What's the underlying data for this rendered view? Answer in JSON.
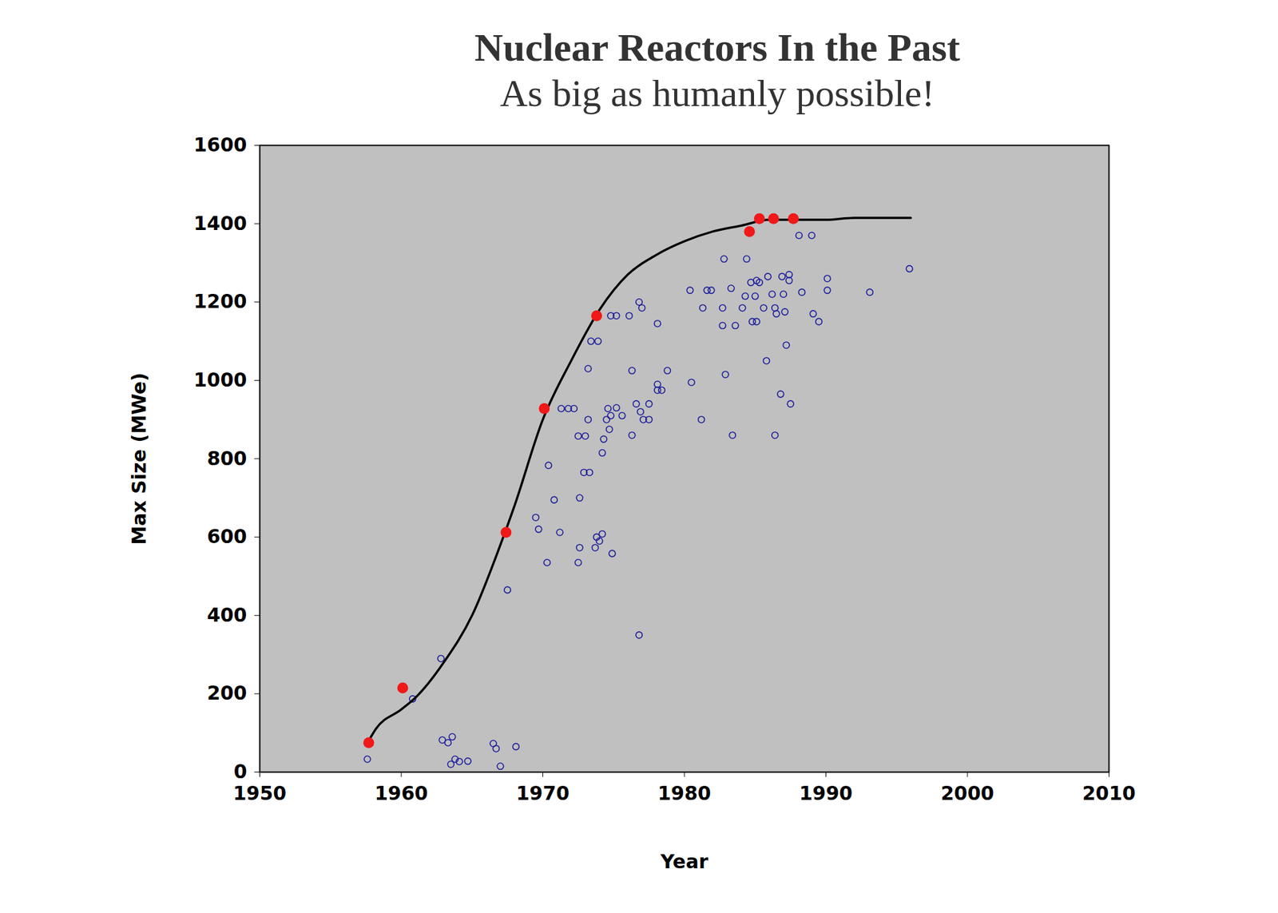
{
  "chart_data": {
    "type": "scatter",
    "title": "Nuclear Reactors In the Past",
    "subtitle": "As big as humanly possible!",
    "x_label": "Year",
    "y_label": "Max Size (MWe)",
    "xlim": [
      1950,
      2010
    ],
    "xticks": [
      1950,
      1960,
      1970,
      1980,
      1990,
      2000,
      2010
    ],
    "ylim": [
      0,
      1600
    ],
    "yticks": [
      0,
      200,
      400,
      600,
      800,
      1000,
      1200,
      1400,
      1600
    ],
    "grid": false,
    "series": [
      {
        "type": "scatter",
        "color": "#1c1c9c",
        "marker": "open_circle",
        "x": [
          1957.6,
          1960.8,
          1962.8,
          1962.9,
          1963.3,
          1963.6,
          1963.5,
          1963.8,
          1964.1,
          1964.7,
          1966.5,
          1966.7,
          1967.0,
          1968.1,
          1967.5,
          1969.5,
          1969.7,
          1970.3,
          1970.4,
          1970.8,
          1971.2,
          1971.3,
          1971.8,
          1972.2,
          1972.5,
          1972.6,
          1972.5,
          1972.6,
          1972.9,
          1973.0,
          1973.2,
          1973.3,
          1973.2,
          1973.4,
          1973.9,
          1973.8,
          1973.7,
          1974.2,
          1974.0,
          1974.2,
          1974.3,
          1974.5,
          1974.6,
          1974.7,
          1974.8,
          1974.9,
          1974.8,
          1975.2,
          1975.2,
          1975.6,
          1976.1,
          1976.3,
          1976.6,
          1976.3,
          1976.8,
          1977.0,
          1976.9,
          1977.1,
          1977.5,
          1977.5,
          1976.8,
          1978.1,
          1978.1,
          1978.1,
          1978.4,
          1978.8,
          1980.4,
          1980.5,
          1981.2,
          1981.3,
          1981.6,
          1981.9,
          1982.7,
          1982.7,
          1982.8,
          1982.9,
          1983.3,
          1983.4,
          1983.6,
          1984.1,
          1984.3,
          1984.4,
          1984.7,
          1984.8,
          1985.0,
          1985.1,
          1985.1,
          1985.3,
          1985.6,
          1985.8,
          1985.9,
          1986.2,
          1986.4,
          1986.4,
          1986.5,
          1986.8,
          1986.9,
          1987.0,
          1987.2,
          1987.1,
          1987.4,
          1987.4,
          1987.5,
          1988.1,
          1988.3,
          1989.0,
          1989.1,
          1989.5,
          1990.1,
          1990.1,
          1993.1,
          1995.9
        ],
        "values": [
          33,
          187,
          290,
          82,
          75,
          90,
          20,
          33,
          27,
          28,
          73,
          60,
          15,
          65,
          465,
          650,
          620,
          535,
          783,
          695,
          612,
          928,
          928,
          928,
          858,
          700,
          535,
          573,
          765,
          858,
          900,
          765,
          1030,
          1100,
          1100,
          600,
          573,
          608,
          590,
          815,
          850,
          900,
          928,
          875,
          910,
          558,
          1165,
          1165,
          930,
          910,
          1165,
          1025,
          940,
          860,
          1200,
          1185,
          920,
          900,
          940,
          900,
          350,
          1145,
          990,
          975,
          975,
          1025,
          1230,
          995,
          900,
          1185,
          1230,
          1230,
          1140,
          1185,
          1310,
          1015,
          1235,
          860,
          1140,
          1185,
          1215,
          1310,
          1250,
          1150,
          1215,
          1150,
          1255,
          1250,
          1185,
          1050,
          1265,
          1220,
          860,
          1185,
          1170,
          965,
          1265,
          1220,
          1090,
          1175,
          1270,
          1255,
          940,
          1370,
          1225,
          1370,
          1170,
          1150,
          1260,
          1230,
          1225,
          1285
        ]
      },
      {
        "type": "line",
        "color": "#000000",
        "line_style": "solid",
        "x": [
          1957.7,
          1958.2,
          1960.0,
          1961.0,
          1963.0,
          1965.0,
          1967.0,
          1968.0,
          1970.0,
          1972.0,
          1974.0,
          1976.0,
          1978.0,
          1980.0,
          1982.0,
          1984.0,
          1986.0,
          1990.0,
          1992.0,
          1996.0
        ],
        "values": [
          80,
          110,
          160,
          190,
          280,
          400,
          580,
          680,
          900,
          1050,
          1180,
          1270,
          1320,
          1355,
          1380,
          1395,
          1410,
          1410,
          1415,
          1415
        ]
      },
      {
        "type": "scatter",
        "color": "#f01818",
        "marker": "filled_circle",
        "x": [
          1957.7,
          1960.1,
          1967.4,
          1970.1,
          1973.8,
          1984.6,
          1985.3,
          1986.3,
          1987.7
        ],
        "values": [
          75,
          215,
          612,
          928,
          1165,
          1380,
          1413,
          1413,
          1413
        ]
      }
    ]
  }
}
